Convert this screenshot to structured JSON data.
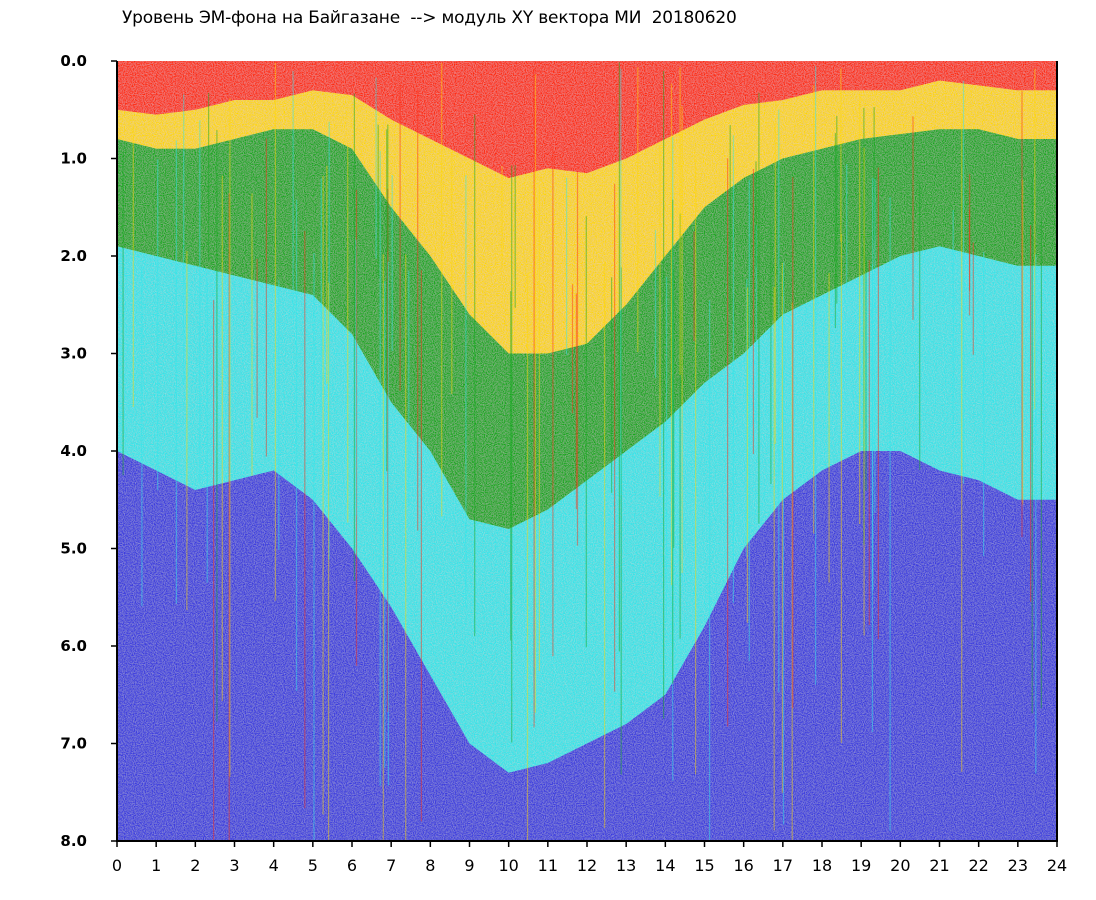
{
  "chart_title": "Уровень ЭМ-фона на Байгазане  --> модуль XY вектора МИ  20180620",
  "chart_data": {
    "type": "heatmap",
    "title": "Уровень ЭМ-фона на Байгазане  --> модуль XY вектора МИ  20180620",
    "xlabel": "",
    "ylabel": "",
    "xlim": [
      0,
      24
    ],
    "ylim": [
      0,
      8
    ],
    "y_inverted": true,
    "x_ticks": [
      "0",
      "1",
      "2",
      "3",
      "4",
      "5",
      "6",
      "7",
      "8",
      "9",
      "10",
      "11",
      "12",
      "13",
      "14",
      "15",
      "16",
      "17",
      "18",
      "19",
      "20",
      "21",
      "22",
      "23",
      "24"
    ],
    "y_ticks": [
      "0.0",
      "1.0",
      "2.0",
      "3.0",
      "4.0",
      "5.0",
      "6.0",
      "7.0",
      "8.0"
    ],
    "colors": {
      "high": "#ff2a0f",
      "upper": "#ffd700",
      "middle": "#12a81c",
      "low": "#30e6ea",
      "lowest": "#3a3ae0",
      "axis": "#000000"
    },
    "boundaries": [
      {
        "name": "red-yellow",
        "hours": [
          0,
          1,
          2,
          3,
          4,
          5,
          6,
          7,
          8,
          9,
          10,
          11,
          12,
          13,
          14,
          15,
          16,
          17,
          18,
          19,
          20,
          21,
          22,
          23,
          24
        ],
        "values": [
          0.5,
          0.55,
          0.5,
          0.4,
          0.4,
          0.3,
          0.35,
          0.6,
          0.8,
          1.0,
          1.2,
          1.1,
          1.15,
          1.0,
          0.8,
          0.6,
          0.45,
          0.4,
          0.3,
          0.3,
          0.3,
          0.2,
          0.25,
          0.3,
          0.3
        ]
      },
      {
        "name": "yellow-green",
        "hours": [
          0,
          1,
          2,
          3,
          4,
          5,
          6,
          7,
          8,
          9,
          10,
          11,
          12,
          13,
          14,
          15,
          16,
          17,
          18,
          19,
          20,
          21,
          22,
          23,
          24
        ],
        "values": [
          0.8,
          0.9,
          0.9,
          0.8,
          0.7,
          0.7,
          0.9,
          1.5,
          2.0,
          2.6,
          3.0,
          3.0,
          2.9,
          2.5,
          2.0,
          1.5,
          1.2,
          1.0,
          0.9,
          0.8,
          0.75,
          0.7,
          0.7,
          0.8,
          0.8
        ]
      },
      {
        "name": "green-cyan",
        "hours": [
          0,
          1,
          2,
          3,
          4,
          5,
          6,
          7,
          8,
          9,
          10,
          11,
          12,
          13,
          14,
          15,
          16,
          17,
          18,
          19,
          20,
          21,
          22,
          23,
          24
        ],
        "values": [
          1.9,
          2.0,
          2.1,
          2.2,
          2.3,
          2.4,
          2.8,
          3.5,
          4.0,
          4.7,
          4.8,
          4.6,
          4.3,
          4.0,
          3.7,
          3.3,
          3.0,
          2.6,
          2.4,
          2.2,
          2.0,
          1.9,
          2.0,
          2.1,
          2.1
        ]
      },
      {
        "name": "cyan-blue",
        "hours": [
          0,
          1,
          2,
          3,
          4,
          5,
          6,
          7,
          8,
          9,
          10,
          11,
          12,
          13,
          14,
          15,
          16,
          17,
          18,
          19,
          20,
          21,
          22,
          23,
          24
        ],
        "values": [
          4.0,
          4.2,
          4.4,
          4.3,
          4.2,
          4.5,
          5.0,
          5.6,
          6.3,
          7.0,
          7.3,
          7.2,
          7.0,
          6.8,
          6.5,
          5.8,
          5.0,
          4.5,
          4.2,
          4.0,
          4.0,
          4.2,
          4.3,
          4.5,
          4.5
        ]
      }
    ]
  }
}
